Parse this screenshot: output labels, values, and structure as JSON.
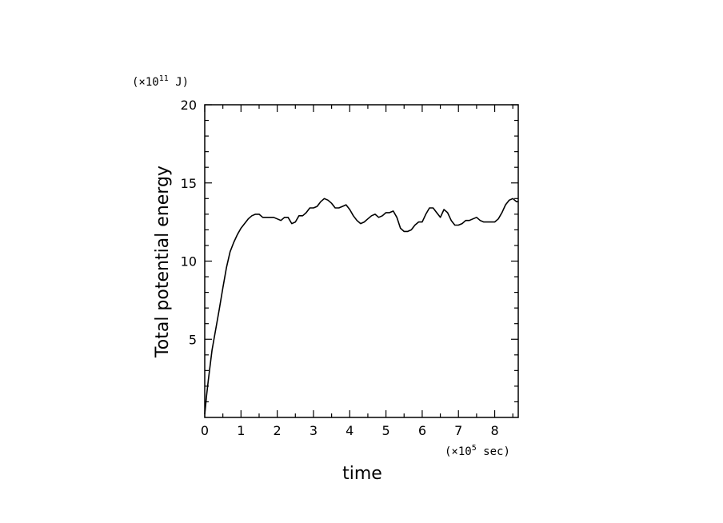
{
  "chart_data": {
    "type": "line",
    "title": "",
    "xlabel": "time",
    "ylabel": "Total potential energy",
    "x_multiplier": {
      "prefix": "(×10",
      "exp": "5",
      "suffix": " sec)"
    },
    "y_multiplier": {
      "prefix": "(×10",
      "exp": "11",
      "suffix": " J)"
    },
    "xlim": [
      0,
      8.65
    ],
    "ylim": [
      0,
      20
    ],
    "xticks": [
      0,
      1,
      2,
      3,
      4,
      5,
      6,
      7,
      8
    ],
    "yticks": [
      5,
      10,
      15,
      20
    ],
    "grid": false,
    "series": [
      {
        "x": [
          0,
          0.05,
          0.1,
          0.2,
          0.3,
          0.4,
          0.5,
          0.6,
          0.7,
          0.8,
          0.9,
          1.0,
          1.1,
          1.2,
          1.3,
          1.4,
          1.5,
          1.6,
          1.7,
          1.8,
          1.9,
          2.0,
          2.1,
          2.2,
          2.3,
          2.4,
          2.5,
          2.6,
          2.7,
          2.8,
          2.9,
          3.0,
          3.1,
          3.2,
          3.3,
          3.4,
          3.5,
          3.6,
          3.7,
          3.8,
          3.9,
          4.0,
          4.1,
          4.2,
          4.3,
          4.4,
          4.5,
          4.6,
          4.7,
          4.8,
          4.9,
          5.0,
          5.1,
          5.2,
          5.3,
          5.4,
          5.5,
          5.6,
          5.7,
          5.8,
          5.9,
          6.0,
          6.1,
          6.2,
          6.3,
          6.4,
          6.5,
          6.6,
          6.7,
          6.8,
          6.9,
          7.0,
          7.1,
          7.2,
          7.3,
          7.4,
          7.5,
          7.6,
          7.7,
          7.8,
          7.9,
          8.0,
          8.1,
          8.2,
          8.3,
          8.4,
          8.5,
          8.6,
          8.65
        ],
        "y": [
          0.2,
          1.4,
          2.4,
          4.3,
          5.6,
          6.9,
          8.3,
          9.6,
          10.6,
          11.2,
          11.7,
          12.1,
          12.4,
          12.7,
          12.9,
          13.0,
          13.0,
          12.8,
          12.8,
          12.8,
          12.8,
          12.7,
          12.6,
          12.8,
          12.8,
          12.4,
          12.5,
          12.9,
          12.9,
          13.1,
          13.4,
          13.4,
          13.5,
          13.8,
          14.0,
          13.9,
          13.7,
          13.4,
          13.4,
          13.5,
          13.6,
          13.3,
          12.9,
          12.6,
          12.4,
          12.5,
          12.7,
          12.9,
          13.0,
          12.8,
          12.9,
          13.1,
          13.1,
          13.2,
          12.8,
          12.1,
          11.9,
          11.9,
          12.0,
          12.3,
          12.5,
          12.5,
          13.0,
          13.4,
          13.4,
          13.1,
          12.8,
          13.3,
          13.1,
          12.6,
          12.3,
          12.3,
          12.4,
          12.6,
          12.6,
          12.7,
          12.8,
          12.6,
          12.5,
          12.5,
          12.5,
          12.5,
          12.7,
          13.1,
          13.6,
          13.9,
          14.0,
          13.8,
          13.8
        ]
      }
    ]
  }
}
